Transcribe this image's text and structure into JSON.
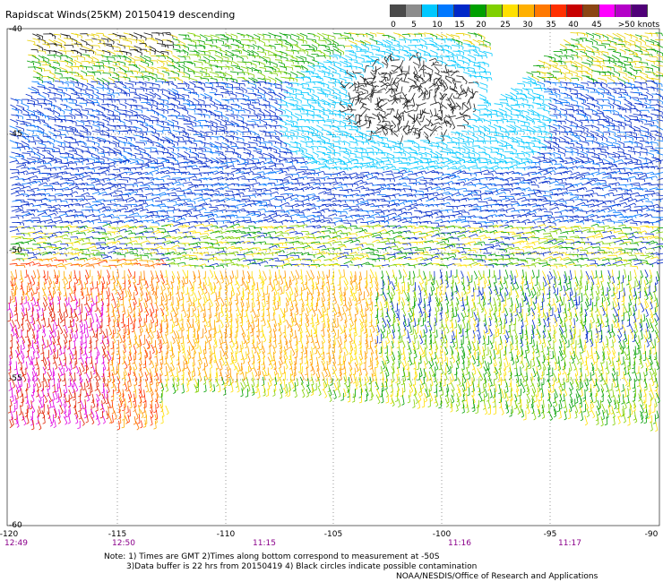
{
  "title": "Rapidscat Winds(25KM) 20150419 descending",
  "legend": {
    "colors": [
      "#4a4a4a",
      "#8c8c8c",
      "#00c8ff",
      "#0078ff",
      "#0028c8",
      "#00a000",
      "#80d000",
      "#ffe000",
      "#ffb000",
      "#ff7800",
      "#ff3000",
      "#c80000",
      "#8b4513",
      "#ff00ff",
      "#b400c8",
      "#500078"
    ],
    "labels": [
      "0",
      "5",
      "10",
      "15",
      "20",
      "25",
      "30",
      "35",
      "40",
      "45",
      ">50 knots"
    ]
  },
  "axes": {
    "lon_ticks": [
      "-120",
      "-115",
      "-110",
      "-105",
      "-100",
      "-95",
      "-90"
    ],
    "lat_ticks": [
      "-40",
      "-45",
      "-50",
      "-55",
      "-60"
    ],
    "times": [
      "12:49",
      "12:50",
      "11:15",
      "11:16",
      "11:17"
    ]
  },
  "notes": {
    "line1": "Note: 1) Times are GMT 2)Times along bottom correspond to measurement at -50S",
    "line2": "3)Data buffer is 22 hrs from 20150419 4) Black circles indicate possible contamination",
    "line3": "NOAA/NESDIS/Office of Research and Applications"
  }
}
